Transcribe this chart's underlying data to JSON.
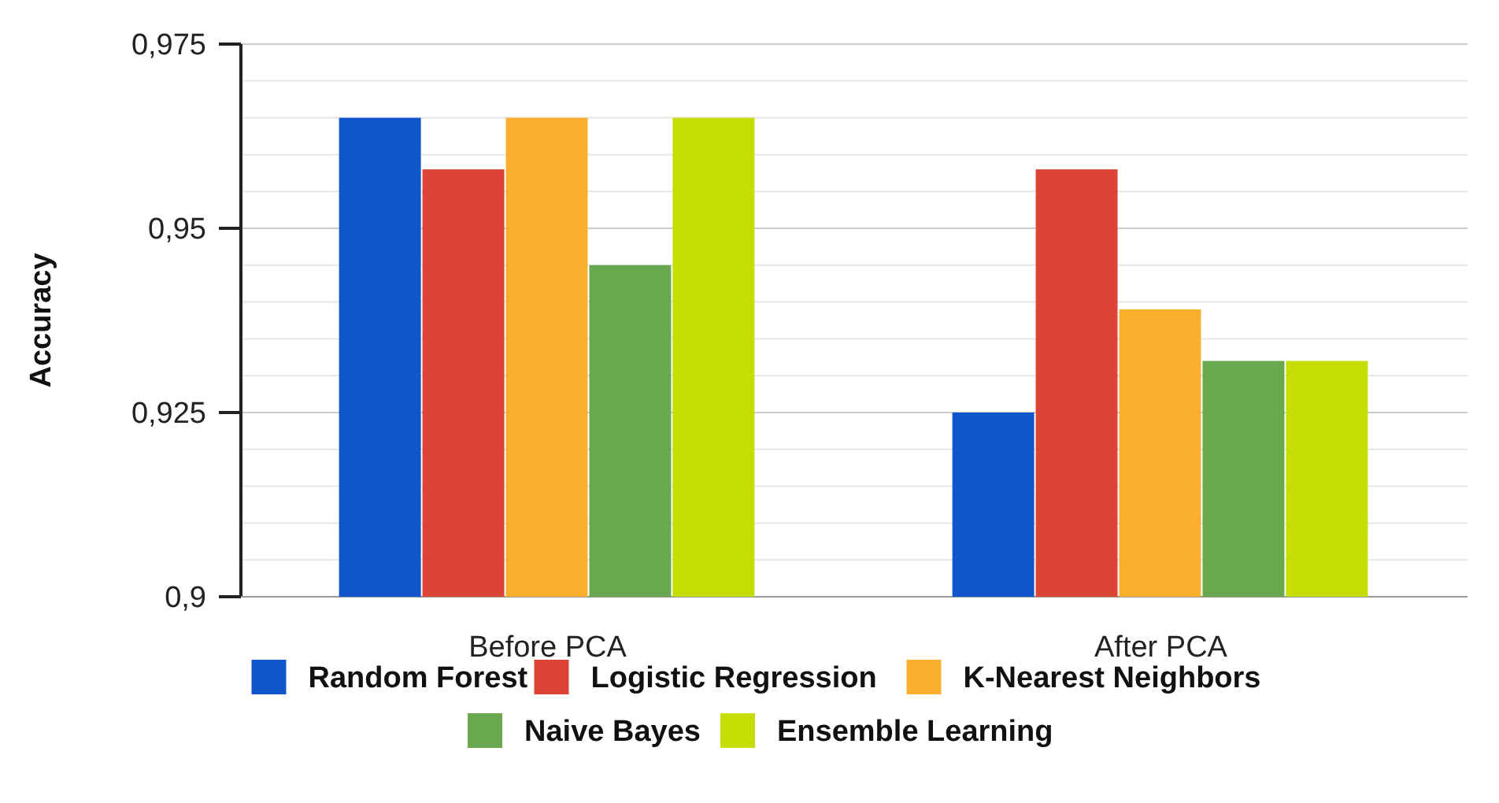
{
  "chart_data": {
    "type": "bar",
    "ylabel": "Accuracy",
    "categories": [
      "Before PCA",
      "After PCA"
    ],
    "series": [
      {
        "name": "Random Forest",
        "color": "#1155cc",
        "values": [
          0.965,
          0.925
        ]
      },
      {
        "name": "Logistic Regression",
        "color": "#dc4535",
        "values": [
          0.958,
          0.958
        ]
      },
      {
        "name": "K-Nearest Neighbors",
        "color": "#fbb02d",
        "values": [
          0.965,
          0.939
        ]
      },
      {
        "name": "Naive Bayes",
        "color": "#6aa84f",
        "values": [
          0.945,
          0.932
        ]
      },
      {
        "name": "Ensemble Learning",
        "color": "#c5dd00",
        "values": [
          0.965,
          0.932
        ]
      }
    ],
    "ylim": [
      0.9,
      0.975
    ],
    "yticks": [
      {
        "value": 0.9,
        "label": "0,9"
      },
      {
        "value": 0.905,
        "label": null
      },
      {
        "value": 0.91,
        "label": null
      },
      {
        "value": 0.915,
        "label": null
      },
      {
        "value": 0.92,
        "label": null
      },
      {
        "value": 0.925,
        "label": "0,925"
      },
      {
        "value": 0.93,
        "label": null
      },
      {
        "value": 0.935,
        "label": null
      },
      {
        "value": 0.94,
        "label": null
      },
      {
        "value": 0.945,
        "label": null
      },
      {
        "value": 0.95,
        "label": "0,95"
      },
      {
        "value": 0.955,
        "label": null
      },
      {
        "value": 0.96,
        "label": null
      },
      {
        "value": 0.965,
        "label": null
      },
      {
        "value": 0.97,
        "label": null
      },
      {
        "value": 0.975,
        "label": "0,975"
      }
    ],
    "grid": "y",
    "legend": "bottom"
  }
}
